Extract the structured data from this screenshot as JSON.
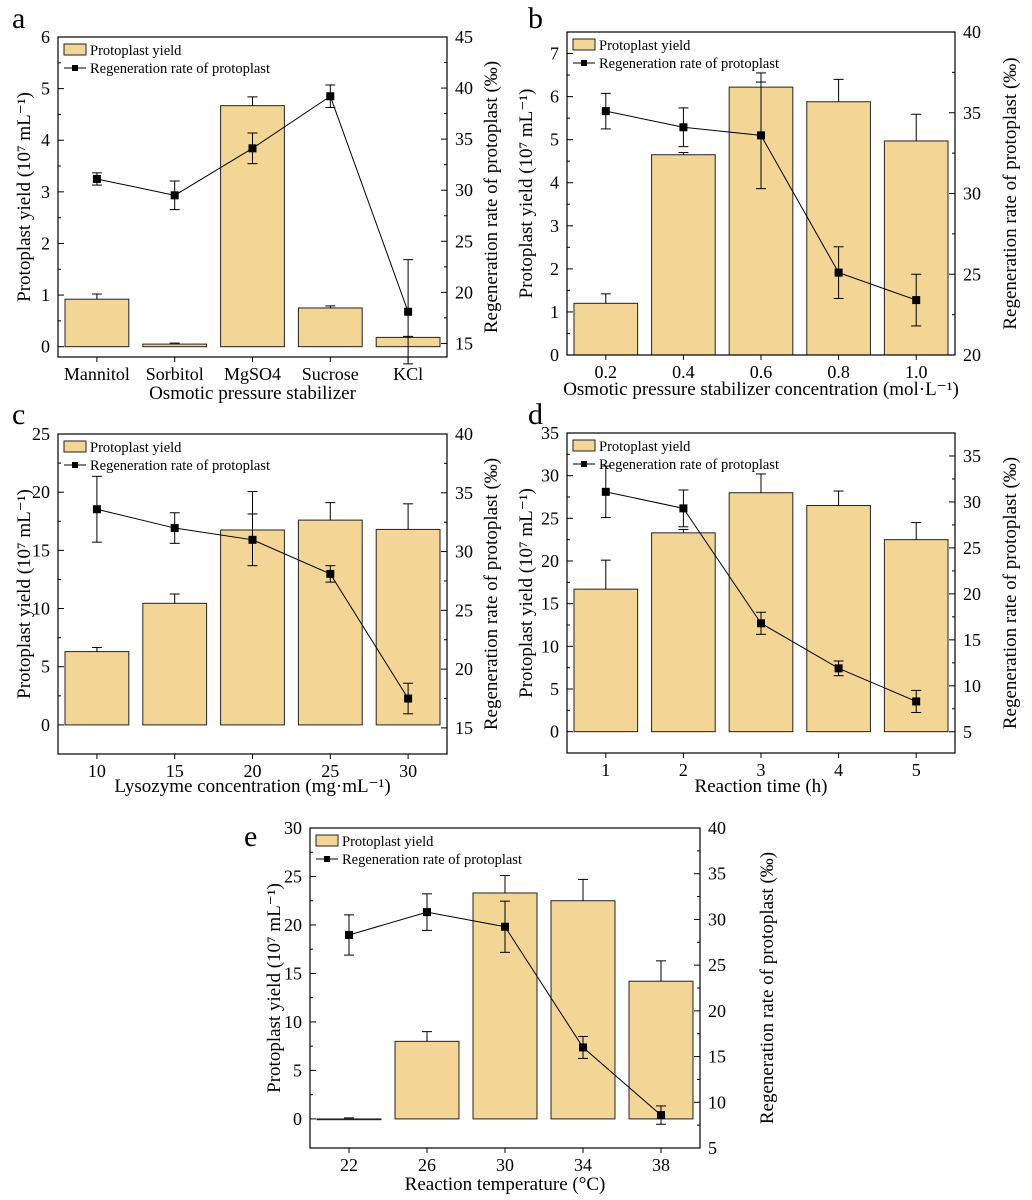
{
  "figure": {
    "legend_bar_label": "Protoplast yield",
    "legend_line_label": "Regeneration rate of protoplast",
    "bar_color": "#f3d696",
    "bar_stroke": "#222222",
    "line_color": "#000000"
  },
  "chart_data": [
    {
      "panel": "a",
      "type": "bar+line",
      "xlabel": "Osmotic pressure stabilizer",
      "ylabel_left": "Protoplast yield (10⁷ mL⁻¹)",
      "ylabel_right": "Regeneration rate of protoplast (‰)",
      "categories": [
        "Mannitol",
        "Sorbitol",
        "MgSO4",
        "Sucrose",
        "KCl"
      ],
      "left_ylim": [
        -0.2,
        6
      ],
      "left_ticks": [
        0,
        1,
        2,
        3,
        4,
        5,
        6
      ],
      "right_ylim": [
        13.67,
        45
      ],
      "right_ticks": [
        15,
        20,
        25,
        30,
        35,
        40,
        45
      ],
      "series": [
        {
          "name": "Protoplast yield",
          "axis": "left",
          "kind": "bar",
          "values": [
            0.92,
            0.05,
            4.67,
            0.75,
            0.18
          ],
          "errors": [
            0.1,
            0.0,
            0.17,
            0.04,
            0.0
          ]
        },
        {
          "name": "Regeneration rate of protoplast",
          "axis": "right",
          "kind": "line",
          "values": [
            31.1,
            29.5,
            34.1,
            39.2,
            18.1
          ],
          "errors": [
            0.6,
            1.4,
            1.5,
            1.1,
            5.1
          ]
        }
      ]
    },
    {
      "panel": "b",
      "type": "bar+line",
      "xlabel": "Osmotic pressure stabilizer concentration (mol·L⁻¹)",
      "ylabel_left": "Protoplast yield (10⁷ mL⁻¹)",
      "ylabel_right": "Regeneration rate of protoplast (‰)",
      "categories": [
        "0.2",
        "0.4",
        "0.6",
        "0.8",
        "1.0"
      ],
      "left_ylim": [
        0,
        7.5
      ],
      "left_ticks": [
        0,
        1,
        2,
        3,
        4,
        5,
        6,
        7
      ],
      "right_ylim": [
        20,
        40
      ],
      "right_ticks": [
        20,
        25,
        30,
        35,
        40
      ],
      "series": [
        {
          "name": "Protoplast yield",
          "axis": "left",
          "kind": "bar",
          "values": [
            1.2,
            4.65,
            6.22,
            5.88,
            4.97
          ],
          "errors": [
            0.22,
            0.05,
            0.33,
            0.52,
            0.62
          ]
        },
        {
          "name": "Regeneration rate of protoplast",
          "axis": "right",
          "kind": "line",
          "values": [
            35.1,
            34.1,
            33.6,
            25.1,
            23.4
          ],
          "errors": [
            1.1,
            1.2,
            3.3,
            1.6,
            1.6
          ]
        }
      ]
    },
    {
      "panel": "c",
      "type": "bar+line",
      "xlabel": "Lysozyme concentration (mg·mL⁻¹)",
      "ylabel_left": "Protoplast yield (10⁷ mL⁻¹)",
      "ylabel_right": "Regeneration rate of protoplast (‰)",
      "categories": [
        "10",
        "15",
        "20",
        "25",
        "30"
      ],
      "left_ylim": [
        -2.5,
        25
      ],
      "left_ticks": [
        0,
        5,
        10,
        15,
        20,
        25
      ],
      "right_ylim": [
        12.78,
        40
      ],
      "right_ticks": [
        15,
        20,
        25,
        30,
        35,
        40
      ],
      "series": [
        {
          "name": "Protoplast yield",
          "axis": "left",
          "kind": "bar",
          "values": [
            6.3,
            10.45,
            16.75,
            17.6,
            16.8
          ],
          "errors": [
            0.35,
            0.8,
            3.3,
            1.5,
            2.2
          ]
        },
        {
          "name": "Regeneration rate of protoplast",
          "axis": "right",
          "kind": "line",
          "values": [
            33.6,
            32.0,
            31.0,
            28.1,
            17.5
          ],
          "errors": [
            2.8,
            1.3,
            2.2,
            0.7,
            1.3
          ]
        }
      ]
    },
    {
      "panel": "d",
      "type": "bar+line",
      "xlabel": "Reaction time (h)",
      "ylabel_left": "Protoplast yield (10⁷ mL⁻¹)",
      "ylabel_right": "Regeneration rate of protoplast (‰)",
      "categories": [
        "1",
        "2",
        "3",
        "4",
        "5"
      ],
      "left_ylim": [
        -2.5,
        35
      ],
      "left_ticks": [
        0,
        5,
        10,
        15,
        20,
        25,
        30,
        35
      ],
      "right_ylim": [
        2.69,
        37.5
      ],
      "right_ticks": [
        5,
        10,
        15,
        20,
        25,
        30,
        35
      ],
      "series": [
        {
          "name": "Protoplast yield",
          "axis": "left",
          "kind": "bar",
          "values": [
            16.7,
            23.3,
            28.0,
            26.5,
            22.5
          ],
          "errors": [
            3.4,
            0.4,
            2.2,
            1.7,
            2.0
          ]
        },
        {
          "name": "Regeneration rate of protoplast",
          "axis": "right",
          "kind": "line",
          "values": [
            31.1,
            29.3,
            16.8,
            11.9,
            8.3
          ],
          "errors": [
            2.8,
            2.0,
            1.2,
            0.8,
            1.2
          ]
        }
      ]
    },
    {
      "panel": "e",
      "type": "bar+line",
      "xlabel": "Reaction temperature (°C)",
      "ylabel_left": "Protoplast yield (10⁷ mL⁻¹)",
      "ylabel_right": "Regeneration rate of protoplast (‰)",
      "categories": [
        "22",
        "26",
        "30",
        "34",
        "38"
      ],
      "left_ylim": [
        -3,
        30
      ],
      "left_ticks": [
        0,
        5,
        10,
        15,
        20,
        25,
        30
      ],
      "right_ylim": [
        5,
        40
      ],
      "right_ticks": [
        5,
        10,
        15,
        20,
        25,
        30,
        35,
        40
      ],
      "series": [
        {
          "name": "Protoplast yield",
          "axis": "left",
          "kind": "bar",
          "values": [
            0.0,
            8.0,
            23.3,
            22.5,
            14.2
          ],
          "errors": [
            0.0,
            1.0,
            1.8,
            2.2,
            2.1
          ]
        },
        {
          "name": "Regeneration rate of protoplast",
          "axis": "right",
          "kind": "line",
          "values": [
            28.3,
            30.8,
            29.2,
            16.0,
            8.6
          ],
          "errors": [
            2.2,
            2.0,
            2.8,
            1.2,
            1.0
          ]
        }
      ]
    }
  ]
}
